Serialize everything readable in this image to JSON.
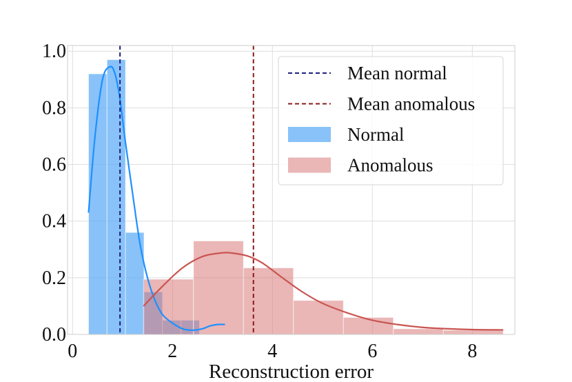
{
  "chart_data": {
    "type": "histogram",
    "title": "",
    "xlabel": "Reconstruction error",
    "ylabel": "",
    "xlim": [
      -0.1,
      8.85
    ],
    "ylim": [
      0,
      1.02
    ],
    "xticks": [
      0,
      2,
      4,
      6,
      8
    ],
    "xtick_labels": [
      "0",
      "2",
      "4",
      "6",
      "8"
    ],
    "yticks": [
      0.0,
      0.2,
      0.4,
      0.6,
      0.8,
      1.0
    ],
    "ytick_labels": [
      "0.0",
      "0.2",
      "0.4",
      "0.6",
      "0.8",
      "1.0"
    ],
    "grid": true,
    "legend_position": "top-right",
    "series": [
      {
        "name": "Normal",
        "kind": "histogram",
        "color": "#5aaaf5",
        "opacity": 0.72,
        "bin_edges": [
          0.32,
          0.69,
          1.06,
          1.43,
          1.8,
          2.17,
          2.54,
          2.91
        ],
        "heights": [
          0.92,
          0.97,
          0.36,
          0.15,
          0.05,
          0.05,
          0.0
        ],
        "kde": {
          "color": "#1e90ff",
          "x": [
            0.32,
            0.45,
            0.6,
            0.75,
            0.85,
            0.95,
            1.05,
            1.2,
            1.35,
            1.5,
            1.65,
            1.8,
            2.0,
            2.2,
            2.4,
            2.6,
            2.75,
            2.9,
            3.05
          ],
          "y": [
            0.43,
            0.7,
            0.9,
            0.945,
            0.92,
            0.83,
            0.69,
            0.5,
            0.32,
            0.2,
            0.12,
            0.07,
            0.04,
            0.02,
            0.015,
            0.02,
            0.03,
            0.035,
            0.035
          ]
        }
      },
      {
        "name": "Anomalous",
        "kind": "histogram",
        "color": "#d97a7a",
        "opacity": 0.55,
        "bin_edges": [
          1.42,
          2.42,
          3.42,
          4.42,
          5.42,
          6.42,
          7.42,
          8.62
        ],
        "heights": [
          0.195,
          0.33,
          0.235,
          0.12,
          0.06,
          0.02,
          0.015
        ],
        "kde": {
          "color": "#c85450",
          "x": [
            1.42,
            1.8,
            2.2,
            2.6,
            3.0,
            3.2,
            3.5,
            3.8,
            4.2,
            4.6,
            5.0,
            5.5,
            6.0,
            6.5,
            7.0,
            7.5,
            8.0,
            8.62
          ],
          "y": [
            0.1,
            0.17,
            0.235,
            0.275,
            0.288,
            0.287,
            0.277,
            0.252,
            0.2,
            0.15,
            0.11,
            0.076,
            0.05,
            0.035,
            0.025,
            0.02,
            0.017,
            0.016
          ]
        }
      }
    ],
    "reference_lines": [
      {
        "name": "Mean normal",
        "x": 0.95,
        "color": "#1f1f7a",
        "style": "dashed"
      },
      {
        "name": "Mean anomalous",
        "x": 3.62,
        "color": "#8b1a1a",
        "style": "dashed"
      }
    ],
    "legend": [
      {
        "label": "Mean normal",
        "kind": "line",
        "color": "#1f1f7a"
      },
      {
        "label": "Mean anomalous",
        "kind": "line",
        "color": "#8b1a1a"
      },
      {
        "label": "Normal",
        "kind": "patch",
        "color": "#5aaaf5"
      },
      {
        "label": "Anomalous",
        "kind": "patch",
        "color": "#d97a7a"
      }
    ]
  }
}
